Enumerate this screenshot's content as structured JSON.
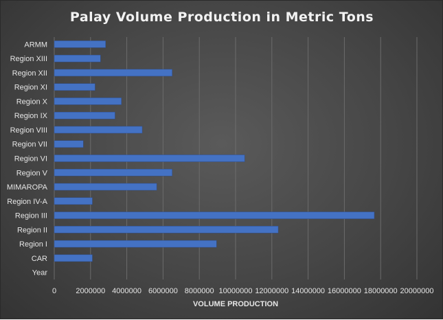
{
  "chart_data": {
    "type": "bar",
    "orientation": "horizontal",
    "title": "Palay Volume Production in Metric Tons",
    "xlabel": "VOLUME PRODUCTION",
    "ylabel": "",
    "xlim": [
      0,
      20000000
    ],
    "x_ticks": [
      "0",
      "2000000",
      "4000000",
      "6000000",
      "8000000",
      "10000000",
      "12000000",
      "14000000",
      "16000000",
      "18000000",
      "20000000"
    ],
    "grid": true,
    "legend": "none",
    "bar_color": "#4472C4",
    "categories": [
      "ARMM",
      "Region XIII",
      "Region XII",
      "Region XI",
      "Region X",
      "Region IX",
      "Region VIII",
      "Region VII",
      "Region VI",
      "Region V",
      "MIMAROPA",
      "Region IV-A",
      "Region III",
      "Region II",
      "Region I",
      "CAR",
      "Year"
    ],
    "values": [
      2830000,
      2550000,
      6500000,
      2250000,
      3700000,
      3350000,
      4850000,
      1600000,
      10500000,
      6500000,
      5650000,
      2100000,
      17650000,
      12350000,
      8950000,
      2100000,
      0
    ]
  }
}
